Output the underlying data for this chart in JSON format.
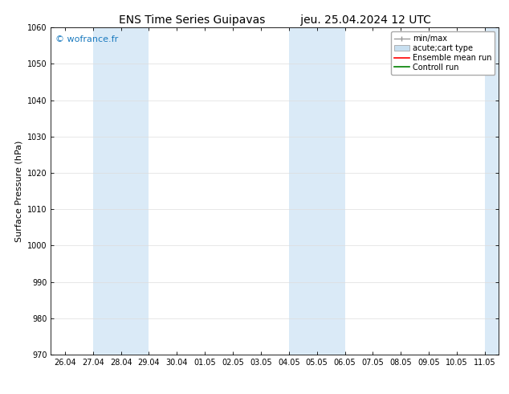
{
  "title_left": "ENS Time Series Guipavas",
  "title_right": "jeu. 25.04.2024 12 UTC",
  "ylabel": "Surface Pressure (hPa)",
  "ylim": [
    970,
    1060
  ],
  "yticks": [
    970,
    980,
    990,
    1000,
    1010,
    1020,
    1030,
    1040,
    1050,
    1060
  ],
  "xtick_labels": [
    "26.04",
    "27.04",
    "28.04",
    "29.04",
    "30.04",
    "01.05",
    "02.05",
    "03.05",
    "04.05",
    "05.05",
    "06.05",
    "07.05",
    "08.05",
    "09.05",
    "10.05",
    "11.05"
  ],
  "watermark": "© wofrance.fr",
  "watermark_color": "#1a7abf",
  "background_color": "#ffffff",
  "plot_bg_color": "#ffffff",
  "shaded_bands": [
    {
      "xstart": 1,
      "xend": 3,
      "color": "#daeaf7"
    },
    {
      "xstart": 8,
      "xend": 10,
      "color": "#daeaf7"
    },
    {
      "xstart": 15,
      "xend": 16,
      "color": "#daeaf7"
    }
  ],
  "legend_entries": [
    {
      "label": "min/max",
      "type": "errorbar",
      "color": "#999999"
    },
    {
      "label": "acute;cart type",
      "type": "fillbetween",
      "color": "#c8dff0"
    },
    {
      "label": "Ensemble mean run",
      "type": "line",
      "color": "#ff0000"
    },
    {
      "label": "Controll run",
      "type": "line",
      "color": "#008000"
    }
  ],
  "title_fontsize": 10,
  "tick_fontsize": 7,
  "ylabel_fontsize": 8,
  "watermark_fontsize": 8,
  "legend_fontsize": 7
}
